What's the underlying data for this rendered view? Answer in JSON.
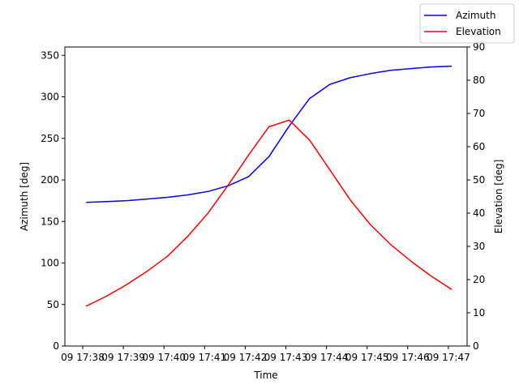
{
  "chart_data": {
    "type": "line",
    "xlabel": "Time",
    "ylabel_left": "Azimuth [deg]",
    "ylabel_right": "Elevation [deg]",
    "x_ticks": [
      "09 17:38",
      "09 17:39",
      "09 17:40",
      "09 17:41",
      "09 17:42",
      "09 17:43",
      "09 17:44",
      "09 17:45",
      "09 17:46",
      "09 17:47"
    ],
    "y_left_ticks": [
      0,
      50,
      100,
      150,
      200,
      250,
      300,
      350
    ],
    "y_right_ticks": [
      0,
      10,
      20,
      30,
      40,
      50,
      60,
      70,
      80,
      90
    ],
    "ylim_left": [
      0,
      360
    ],
    "ylim_right": [
      0,
      90
    ],
    "grid": false,
    "legend_position": "top-right",
    "x": [
      "17:38:05",
      "17:38:35",
      "17:39:05",
      "17:39:35",
      "17:40:05",
      "17:40:35",
      "17:41:05",
      "17:41:35",
      "17:42:05",
      "17:42:35",
      "17:43:05",
      "17:43:35",
      "17:44:05",
      "17:44:35",
      "17:45:05",
      "17:45:35",
      "17:46:05",
      "17:46:35",
      "17:47:05"
    ],
    "series": [
      {
        "name": "Azimuth",
        "axis": "left",
        "color": "#0000ff",
        "values": [
          173,
          174,
          175,
          177,
          179,
          182,
          186,
          193,
          204,
          228,
          265,
          298,
          315,
          323,
          328,
          332,
          334,
          336,
          337
        ]
      },
      {
        "name": "Elevation",
        "axis": "right",
        "color": "#ff0000",
        "values": [
          12,
          15,
          18.5,
          22.5,
          27,
          33,
          40,
          48.5,
          57.5,
          66,
          68,
          62,
          53,
          44,
          36.5,
          30.5,
          25.5,
          21,
          17
        ]
      }
    ]
  }
}
